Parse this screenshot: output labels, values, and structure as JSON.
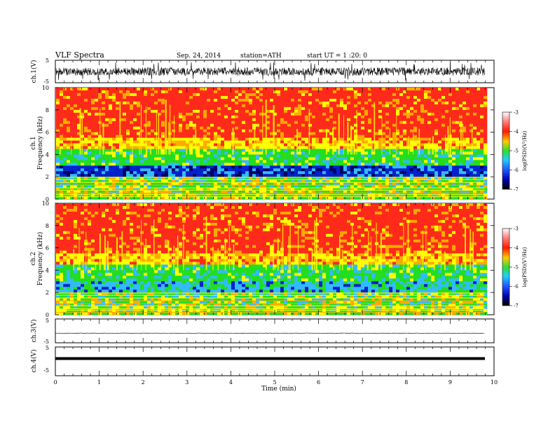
{
  "header": {
    "title": "VLF  Spectra",
    "date": "Sep. 24, 2014",
    "station": "station=ATH",
    "start": "start  UT =  1 :20: 0"
  },
  "chart_data": [
    {
      "type": "line",
      "panel": "ch1-waveform",
      "ylabel": "ch.1(V)",
      "ylim": [
        -5,
        5
      ],
      "yticks": [
        "5",
        "-5"
      ],
      "xlim": [
        0,
        10
      ],
      "signal": "dense noise waveform, baseline near 0 V, amplitude about ±2 V with spikes near ±4 V"
    },
    {
      "type": "heatmap",
      "panel": "ch1-spectrogram",
      "ylabel_channel": "ch.1",
      "ylabel": "Frequency  (kHz)",
      "ylim": [
        0,
        10
      ],
      "yticks": [
        "0",
        "2",
        "4",
        "6",
        "8",
        "10"
      ],
      "xlim": [
        0,
        10
      ],
      "data_end_min": 9.8,
      "bands": [
        {
          "from_khz": 0,
          "to_khz": 2,
          "color_level": "yellow/green with horizontal lines"
        },
        {
          "from_khz": 2,
          "to_khz": 3,
          "color_level": "blue (~ -6)"
        },
        {
          "from_khz": 3,
          "to_khz": 4.5,
          "color_level": "green (~ -5)"
        },
        {
          "from_khz": 4.5,
          "to_khz": 10,
          "color_level": "red/orange (~ -4)"
        }
      ],
      "colorbar": {
        "label": "log(PSD)(V²/Hz)",
        "ticks": [
          "-3",
          "-4",
          "-5",
          "-6",
          "-7"
        ],
        "range": [
          -7,
          -3
        ]
      }
    },
    {
      "type": "heatmap",
      "panel": "ch2-spectrogram",
      "ylabel_channel": "ch.2",
      "ylabel": "Frequency  (kHz)",
      "ylim": [
        0,
        10
      ],
      "yticks": [
        "0",
        "2",
        "4",
        "6",
        "8",
        "10"
      ],
      "xlim": [
        0,
        10
      ],
      "data_end_min": 9.8,
      "bands": [
        {
          "from_khz": 0,
          "to_khz": 2,
          "color_level": "yellow/green with horizontal lines"
        },
        {
          "from_khz": 2,
          "to_khz": 3,
          "color_level": "cyan/green (~ -5.5)"
        },
        {
          "from_khz": 3,
          "to_khz": 4.5,
          "color_level": "green (~ -5)"
        },
        {
          "from_khz": 4.5,
          "to_khz": 10,
          "color_level": "red/orange (~ -4)"
        }
      ],
      "colorbar": {
        "label": "log(PSD)(V²/Hz)",
        "ticks": [
          "-3",
          "-4",
          "-5",
          "-6",
          "-7"
        ],
        "range": [
          -7,
          -3
        ]
      }
    },
    {
      "type": "line",
      "panel": "ch3-waveform",
      "ylabel": "ch.3(V)",
      "ylim": [
        -5,
        5
      ],
      "yticks": [
        "5",
        "-5"
      ],
      "signal": "flat line near 0 V"
    },
    {
      "type": "line",
      "panel": "ch4-waveform",
      "ylabel": "ch.4(V)",
      "ylim": [
        -5,
        5
      ],
      "yticks": [
        "5",
        "-5"
      ],
      "xlabel": "Time  (min)",
      "xlim": [
        0,
        10
      ],
      "xticks": [
        "0",
        "1",
        "2",
        "3",
        "4",
        "5",
        "6",
        "7",
        "8",
        "9",
        "10"
      ],
      "signal": "thick flat line slightly below 0 V"
    }
  ],
  "colors": {
    "red": "#ff2a1a",
    "orange": "#ffaa00",
    "yellow": "#ffff00",
    "green": "#22dd22",
    "cyan": "#33bbff",
    "blue": "#0022cc",
    "navy": "#000066"
  }
}
